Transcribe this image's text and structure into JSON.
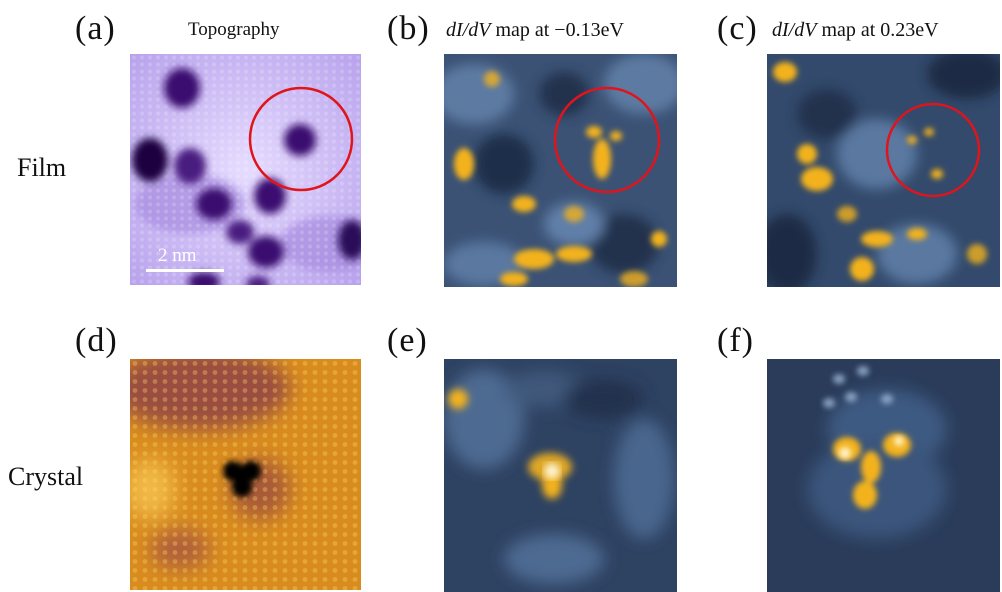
{
  "panels": {
    "a": {
      "letter": "(a)",
      "title": "Topography"
    },
    "b": {
      "letter": "(b)",
      "title_italic": "dI/dV",
      "title_rest": " map at −0.13eV"
    },
    "c": {
      "letter": "(c)",
      "title_italic": "dI/dV",
      "title_rest": " map at 0.23eV"
    },
    "d": {
      "letter": "(d)"
    },
    "e": {
      "letter": "(e)"
    },
    "f": {
      "letter": "(f)"
    }
  },
  "rows": {
    "top": "Film",
    "bottom": "Crystal"
  },
  "scalebar": {
    "label": "2 nm"
  },
  "colors": {
    "topo_purple": "#c8b6f2",
    "topo_dark": "#2a0a5a",
    "map_blue": "#2b3e5c",
    "map_yellow": "#f3b21c",
    "crystal_orange": "#d98c1e",
    "circle_red": "#e0141b"
  }
}
